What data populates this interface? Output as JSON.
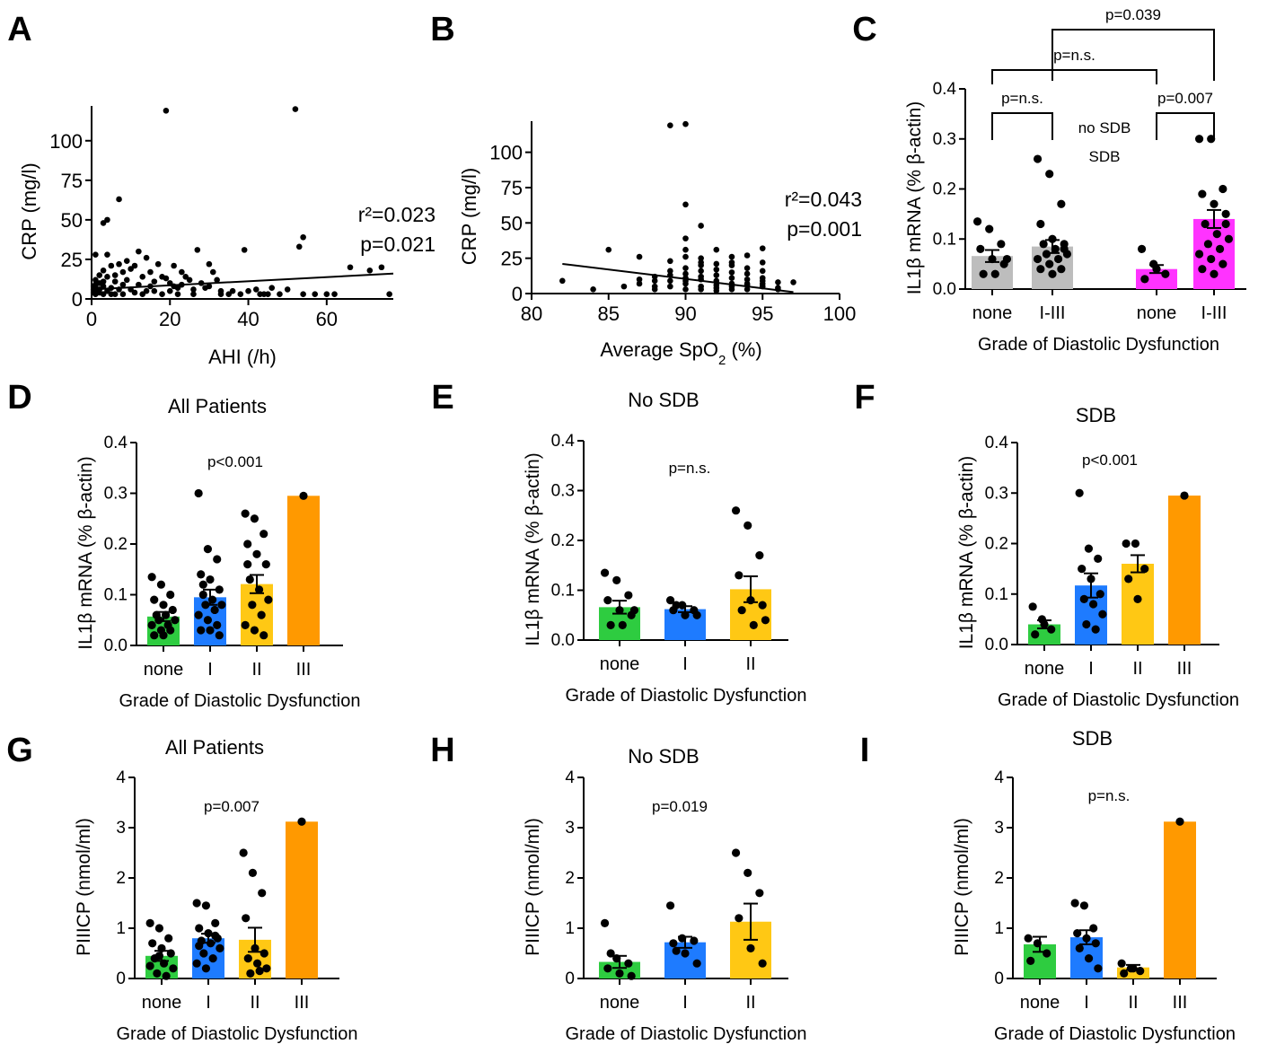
{
  "colors": {
    "none": "#2ecc40",
    "I": "#1e7bff",
    "II": "#ffc814",
    "III": "#ff9900",
    "noSDB": "#bdbdbd",
    "SDB": "#ff33ff"
  },
  "chart_data": [
    {
      "id": "A",
      "type": "scatter",
      "panel_letter": "A",
      "title": "",
      "xlabel": "AHI (/h)",
      "ylabel": "CRP (mg/l)",
      "xlim": [
        0,
        77
      ],
      "ylim": [
        0,
        122
      ],
      "xticks": [
        0,
        20,
        40,
        60
      ],
      "yticks": [
        0,
        25,
        50,
        75,
        100
      ],
      "annotations": [
        "r²=0.023",
        "p=0.021"
      ],
      "regression": [
        [
          0,
          6
        ],
        [
          77,
          16
        ]
      ],
      "points": [
        [
          1,
          28
        ],
        [
          3,
          48
        ],
        [
          4,
          50
        ],
        [
          7,
          63
        ],
        [
          19,
          119
        ],
        [
          52,
          120
        ],
        [
          54,
          39
        ],
        [
          53,
          33
        ],
        [
          76,
          3
        ],
        [
          74,
          20
        ],
        [
          71,
          18
        ],
        [
          66,
          20
        ],
        [
          57,
          3
        ],
        [
          60,
          3
        ],
        [
          62,
          3
        ],
        [
          54,
          3
        ],
        [
          50,
          6
        ],
        [
          48,
          3
        ],
        [
          46,
          7
        ],
        [
          39,
          31
        ],
        [
          38,
          3
        ],
        [
          35,
          3
        ],
        [
          33,
          3
        ],
        [
          32,
          12
        ],
        [
          31,
          17
        ],
        [
          30,
          22
        ],
        [
          29,
          7
        ],
        [
          27,
          31
        ],
        [
          26,
          3
        ],
        [
          25,
          12
        ],
        [
          24,
          14
        ],
        [
          23,
          17
        ],
        [
          22,
          3
        ],
        [
          21,
          8
        ],
        [
          21,
          21
        ],
        [
          20,
          5
        ],
        [
          19,
          13
        ],
        [
          18,
          14
        ],
        [
          18,
          3
        ],
        [
          17,
          22
        ],
        [
          16,
          5
        ],
        [
          15,
          8
        ],
        [
          15,
          17
        ],
        [
          14,
          26
        ],
        [
          13,
          3
        ],
        [
          13,
          14
        ],
        [
          12,
          30
        ],
        [
          12,
          9
        ],
        [
          11,
          21
        ],
        [
          11,
          4
        ],
        [
          10,
          6
        ],
        [
          10,
          19
        ],
        [
          9,
          12
        ],
        [
          9,
          24
        ],
        [
          8,
          3
        ],
        [
          8,
          17
        ],
        [
          8,
          9
        ],
        [
          7,
          6
        ],
        [
          7,
          22
        ],
        [
          6,
          3
        ],
        [
          6,
          11
        ],
        [
          6,
          15
        ],
        [
          5,
          7
        ],
        [
          5,
          21
        ],
        [
          5,
          3
        ],
        [
          4,
          5
        ],
        [
          4,
          14
        ],
        [
          4,
          28
        ],
        [
          3,
          3
        ],
        [
          3,
          8
        ],
        [
          3,
          11
        ],
        [
          3,
          18
        ],
        [
          2,
          4
        ],
        [
          2,
          6
        ],
        [
          2,
          10
        ],
        [
          2,
          15
        ],
        [
          1,
          3
        ],
        [
          1,
          5
        ],
        [
          1,
          7
        ],
        [
          1,
          9
        ],
        [
          1,
          12
        ],
        [
          0.5,
          4
        ],
        [
          0.5,
          6
        ],
        [
          0.5,
          8
        ],
        [
          14,
          5
        ],
        [
          16,
          11
        ],
        [
          20,
          10
        ],
        [
          22,
          7
        ],
        [
          23,
          9
        ],
        [
          26,
          6
        ],
        [
          28,
          10
        ],
        [
          30,
          8
        ],
        [
          33,
          5
        ],
        [
          36,
          5
        ],
        [
          40,
          5
        ],
        [
          43,
          3
        ],
        [
          44,
          3
        ],
        [
          45,
          3
        ],
        [
          42,
          6
        ]
      ]
    },
    {
      "id": "B",
      "type": "scatter",
      "panel_letter": "B",
      "title": "",
      "xlabel": "Average SpO2 (%)",
      "ylabel": "CRP (mg/l)",
      "xlim": [
        80,
        100
      ],
      "ylim": [
        0,
        122
      ],
      "xticks": [
        80,
        85,
        90,
        95,
        100
      ],
      "yticks": [
        0,
        25,
        50,
        75,
        100
      ],
      "annotations": [
        "r²=0.043",
        "p=0.001"
      ],
      "regression": [
        [
          82,
          21
        ],
        [
          97,
          1
        ]
      ],
      "points": [
        [
          82,
          9
        ],
        [
          84,
          3
        ],
        [
          85,
          31
        ],
        [
          86,
          5
        ],
        [
          87,
          26
        ],
        [
          88,
          9
        ],
        [
          88,
          5
        ],
        [
          89,
          119
        ],
        [
          90,
          120
        ],
        [
          90,
          63
        ],
        [
          91,
          48
        ],
        [
          90,
          39
        ],
        [
          90,
          31
        ],
        [
          90,
          26
        ],
        [
          91,
          22
        ],
        [
          92,
          31
        ],
        [
          92,
          17
        ],
        [
          93,
          26
        ],
        [
          93,
          20
        ],
        [
          94,
          27
        ],
        [
          95,
          32
        ],
        [
          95,
          22
        ],
        [
          96,
          3
        ],
        [
          97,
          8
        ],
        [
          89,
          16
        ],
        [
          89,
          23
        ],
        [
          89,
          13
        ],
        [
          88,
          12
        ],
        [
          87,
          7
        ],
        [
          87,
          10
        ],
        [
          88,
          3
        ],
        [
          90,
          18
        ],
        [
          90,
          14
        ],
        [
          90,
          11
        ],
        [
          90,
          7
        ],
        [
          90,
          3
        ],
        [
          91,
          10
        ],
        [
          91,
          16
        ],
        [
          91,
          5
        ],
        [
          91,
          25
        ],
        [
          92,
          9
        ],
        [
          92,
          13
        ],
        [
          92,
          21
        ],
        [
          92,
          4
        ],
        [
          92,
          6
        ],
        [
          93,
          11
        ],
        [
          93,
          15
        ],
        [
          93,
          3
        ],
        [
          93,
          7
        ],
        [
          93,
          22
        ],
        [
          94,
          6
        ],
        [
          94,
          10
        ],
        [
          94,
          14
        ],
        [
          94,
          18
        ],
        [
          94,
          3
        ],
        [
          95,
          5
        ],
        [
          95,
          11
        ],
        [
          95,
          16
        ],
        [
          95,
          9
        ],
        [
          96,
          4
        ],
        [
          96,
          8
        ],
        [
          91,
          3
        ],
        [
          92,
          2
        ],
        [
          89,
          5
        ],
        [
          89,
          9
        ],
        [
          90,
          9
        ],
        [
          91,
          12
        ],
        [
          93,
          5
        ],
        [
          94,
          7
        ],
        [
          95,
          7
        ],
        [
          91,
          20
        ]
      ]
    },
    {
      "id": "C",
      "type": "bar",
      "panel_letter": "C",
      "title": "",
      "ylabel": "IL1β mRNA (% β-actin)",
      "xlabel": "Grade of Diastolic Dysfunction",
      "ylim": [
        0,
        0.4
      ],
      "yticks": [
        "0.0",
        "0.1",
        "0.2",
        "0.3",
        "0.4"
      ],
      "legend": [
        "no SDB",
        "SDB"
      ],
      "categories": [
        "none",
        "I-III",
        "none",
        "I-III"
      ],
      "bar_color_keys": [
        "noSDB",
        "noSDB",
        "SDB",
        "SDB"
      ],
      "values": [
        0.066,
        0.085,
        0.04,
        0.14
      ],
      "sem": [
        0.012,
        0.013,
        0.008,
        0.018
      ],
      "points": [
        [
          0.135,
          0.12,
          0.09,
          0.08,
          0.06,
          0.05,
          0.03,
          0.03,
          0.06
        ],
        [
          0.26,
          0.23,
          0.17,
          0.13,
          0.1,
          0.09,
          0.09,
          0.08,
          0.07,
          0.07,
          0.06,
          0.06,
          0.05,
          0.04,
          0.04,
          0.03,
          0.08
        ],
        [
          0.08,
          0.05,
          0.03,
          0.02,
          0.04
        ],
        [
          0.3,
          0.3,
          0.2,
          0.19,
          0.17,
          0.15,
          0.13,
          0.11,
          0.1,
          0.09,
          0.08,
          0.07,
          0.06,
          0.05,
          0.04,
          0.03,
          0.13
        ]
      ],
      "brackets": [
        {
          "from": 0,
          "to": 1,
          "label": "p=n.s.",
          "level": 0.37
        },
        {
          "from": 2,
          "to": 3,
          "label": "p=0.007",
          "level": 0.37
        },
        {
          "from": 0,
          "to": 2,
          "label": "p=n.s.",
          "level": 0.43
        },
        {
          "from": 1,
          "to": 3,
          "label": "p=0.039",
          "level": 0.5
        }
      ]
    },
    {
      "id": "D",
      "type": "bar",
      "panel_letter": "D",
      "title": "All Patients",
      "annotation": "p<0.001",
      "ylabel": "IL1β mRNA (% β-actin)",
      "xlabel": "Grade of Diastolic Dysfunction",
      "ylim": [
        0,
        0.4
      ],
      "yticks": [
        "0.0",
        "0.1",
        "0.2",
        "0.3",
        "0.4"
      ],
      "categories": [
        "none",
        "I",
        "II",
        "III"
      ],
      "bar_color_keys": [
        "none",
        "I",
        "II",
        "III"
      ],
      "values": [
        0.057,
        0.095,
        0.121,
        0.295
      ],
      "sem": [
        0.009,
        0.015,
        0.018,
        0
      ],
      "points": [
        [
          0.135,
          0.12,
          0.1,
          0.09,
          0.08,
          0.07,
          0.06,
          0.06,
          0.05,
          0.05,
          0.04,
          0.04,
          0.03,
          0.03,
          0.02,
          0.02
        ],
        [
          0.3,
          0.19,
          0.17,
          0.14,
          0.13,
          0.11,
          0.1,
          0.09,
          0.08,
          0.08,
          0.07,
          0.06,
          0.05,
          0.04,
          0.03,
          0.03,
          0.02,
          0.12
        ],
        [
          0.26,
          0.25,
          0.22,
          0.2,
          0.18,
          0.16,
          0.13,
          0.11,
          0.09,
          0.08,
          0.06,
          0.04,
          0.03,
          0.02,
          0.16
        ],
        [
          0.295
        ]
      ]
    },
    {
      "id": "E",
      "type": "bar",
      "panel_letter": "E",
      "title": "No SDB",
      "annotation": "p=n.s.",
      "ylabel": "IL1β mRNA (% β-actin)",
      "xlabel": "Grade of Diastolic Dysfunction",
      "ylim": [
        0,
        0.4
      ],
      "yticks": [
        "0.0",
        "0.1",
        "0.2",
        "0.3",
        "0.4"
      ],
      "categories": [
        "none",
        "I",
        "II"
      ],
      "bar_color_keys": [
        "none",
        "I",
        "II"
      ],
      "values": [
        0.066,
        0.062,
        0.102
      ],
      "sem": [
        0.013,
        0.006,
        0.026
      ],
      "points": [
        [
          0.135,
          0.12,
          0.09,
          0.08,
          0.06,
          0.05,
          0.03,
          0.03,
          0.06
        ],
        [
          0.08,
          0.07,
          0.06,
          0.06,
          0.05,
          0.05,
          0.07
        ],
        [
          0.26,
          0.23,
          0.17,
          0.13,
          0.08,
          0.07,
          0.06,
          0.03,
          0.04
        ]
      ]
    },
    {
      "id": "F",
      "type": "bar",
      "panel_letter": "F",
      "title": "SDB",
      "annotation": "p<0.001",
      "ylabel": "IL1β mRNA (% β-actin)",
      "xlabel": "Grade of Diastolic Dysfunction",
      "ylim": [
        0,
        0.4
      ],
      "yticks": [
        "0.0",
        "0.1",
        "0.2",
        "0.3",
        "0.4"
      ],
      "categories": [
        "none",
        "I",
        "II",
        "III"
      ],
      "bar_color_keys": [
        "none",
        "I",
        "II",
        "III"
      ],
      "values": [
        0.04,
        0.117,
        0.16,
        0.295
      ],
      "sem": [
        0.008,
        0.024,
        0.017,
        0
      ],
      "points": [
        [
          0.075,
          0.05,
          0.03,
          0.02,
          0.04
        ],
        [
          0.3,
          0.19,
          0.17,
          0.15,
          0.13,
          0.1,
          0.09,
          0.08,
          0.06,
          0.04,
          0.03
        ],
        [
          0.2,
          0.2,
          0.15,
          0.13,
          0.09
        ],
        [
          0.295
        ]
      ]
    },
    {
      "id": "G",
      "type": "bar",
      "panel_letter": "G",
      "title": "All Patients",
      "annotation": "p=0.007",
      "ylabel": "PIIICP (nmol/ml)",
      "xlabel": "Grade of Diastolic Dysfunction",
      "ylim": [
        0,
        4
      ],
      "yticks": [
        "0",
        "1",
        "2",
        "3",
        "4"
      ],
      "categories": [
        "none",
        "I",
        "II",
        "III"
      ],
      "bar_color_keys": [
        "none",
        "I",
        "II",
        "III"
      ],
      "values": [
        0.45,
        0.8,
        0.77,
        3.12
      ],
      "sem": [
        0.1,
        0.09,
        0.24,
        0
      ],
      "points": [
        [
          1.1,
          1.0,
          0.8,
          0.7,
          0.6,
          0.5,
          0.4,
          0.3,
          0.2,
          0.1,
          0.05,
          0.25,
          0.45
        ],
        [
          1.5,
          1.45,
          1.1,
          1.0,
          0.9,
          0.8,
          0.75,
          0.7,
          0.6,
          0.5,
          0.4,
          0.3,
          0.2,
          0.85,
          0.65
        ],
        [
          2.5,
          2.1,
          1.7,
          1.2,
          0.6,
          0.5,
          0.4,
          0.3,
          0.2,
          0.1,
          0.15
        ],
        [
          3.12
        ]
      ]
    },
    {
      "id": "H",
      "type": "bar",
      "panel_letter": "H",
      "title": "No SDB",
      "annotation": "p=0.019",
      "ylabel": "PIIICP (nmol/ml)",
      "xlabel": "Grade of Diastolic Dysfunction",
      "ylim": [
        0,
        4
      ],
      "yticks": [
        "0",
        "1",
        "2",
        "3",
        "4"
      ],
      "categories": [
        "none",
        "I",
        "II"
      ],
      "bar_color_keys": [
        "none",
        "I",
        "II"
      ],
      "values": [
        0.33,
        0.72,
        1.13
      ],
      "sem": [
        0.12,
        0.11,
        0.36
      ],
      "points": [
        [
          1.1,
          0.4,
          0.3,
          0.2,
          0.1,
          0.05,
          0.5
        ],
        [
          1.45,
          0.8,
          0.75,
          0.7,
          0.5,
          0.3,
          0.55
        ],
        [
          2.5,
          2.1,
          1.7,
          1.2,
          0.6,
          0.3
        ]
      ]
    },
    {
      "id": "I",
      "type": "bar",
      "panel_letter": "I",
      "title": "SDB",
      "annotation": "p=n.s.",
      "ylabel": "PIIICP (nmol/ml)",
      "xlabel": "Grade of Diastolic Dysfunction",
      "ylim": [
        0,
        4
      ],
      "yticks": [
        "0",
        "1",
        "2",
        "3",
        "4"
      ],
      "categories": [
        "none",
        "I",
        "II",
        "III"
      ],
      "bar_color_keys": [
        "none",
        "I",
        "II",
        "III"
      ],
      "values": [
        0.68,
        0.82,
        0.22,
        3.12
      ],
      "sem": [
        0.15,
        0.14,
        0.05,
        0
      ],
      "points": [
        [
          0.8,
          0.7,
          0.5,
          0.35
        ],
        [
          1.5,
          1.45,
          1.0,
          0.9,
          0.8,
          0.7,
          0.6,
          0.4,
          0.2
        ],
        [
          0.3,
          0.2,
          0.15,
          0.1,
          0.2
        ],
        [
          3.12
        ]
      ]
    }
  ]
}
